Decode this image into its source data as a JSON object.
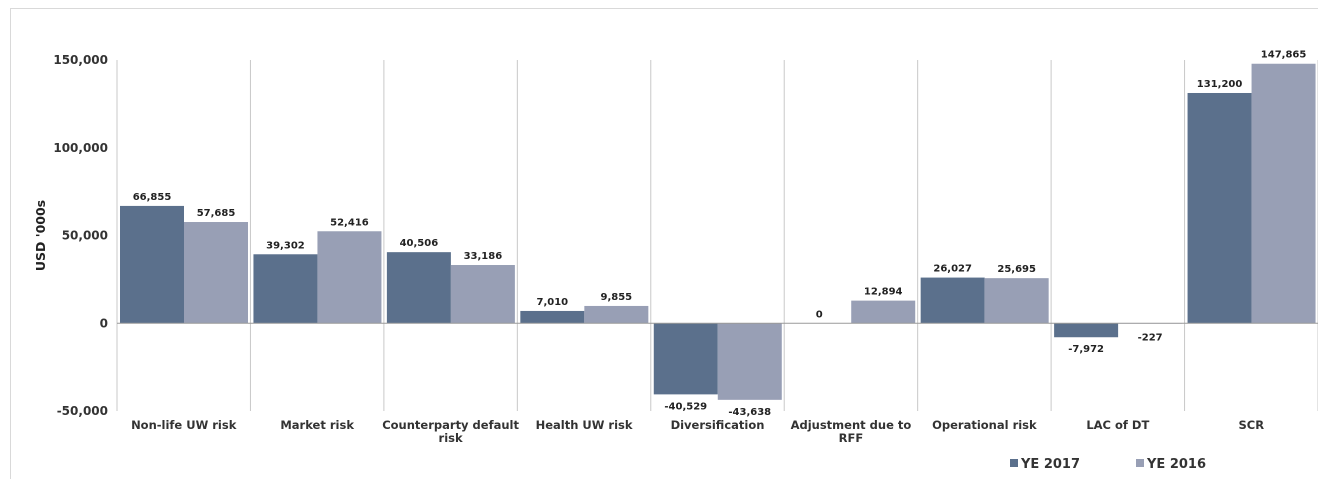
{
  "chart_data": {
    "type": "bar",
    "categories": [
      "Non-life UW risk",
      "Market risk",
      "Counterparty default risk",
      "Health UW risk",
      "Diversification",
      "Adjustment due to RFF",
      "Operational risk",
      "LAC of DT",
      "SCR"
    ],
    "category_lines": [
      [
        "Non-life UW risk"
      ],
      [
        "Market risk"
      ],
      [
        "Counterparty default",
        "risk"
      ],
      [
        "Health UW risk"
      ],
      [
        "Diversification"
      ],
      [
        "Adjustment due to",
        "RFF"
      ],
      [
        "Operational risk"
      ],
      [
        "LAC of DT"
      ],
      [
        "SCR"
      ]
    ],
    "series": [
      {
        "name": "YE 2017",
        "color": "#5b708c",
        "values": [
          66855,
          39302,
          40506,
          7010,
          -40529,
          0,
          26027,
          -7972,
          131200
        ],
        "labels": [
          "66,855",
          "39,302",
          "40,506",
          "7,010",
          "-40,529",
          "0",
          "26,027",
          "-7,972",
          "131,200"
        ]
      },
      {
        "name": "YE 2016",
        "color": "#989fb5",
        "values": [
          57685,
          52416,
          33186,
          9855,
          -43638,
          12894,
          25695,
          -227,
          147865
        ],
        "labels": [
          "57,685",
          "52,416",
          "33,186",
          "9,855",
          "-43,638",
          "12,894",
          "25,695",
          "-227",
          "147,865"
        ]
      }
    ],
    "ylabel": "USD '000s",
    "ylim": [
      -50000,
      150000
    ],
    "yticks": [
      -50000,
      0,
      50000,
      100000,
      150000
    ],
    "ytick_labels": [
      "-50,000",
      "0",
      "50,000",
      "100,000",
      "150,000"
    ],
    "grid": "vertical category separators",
    "legend": "bottom-right"
  }
}
